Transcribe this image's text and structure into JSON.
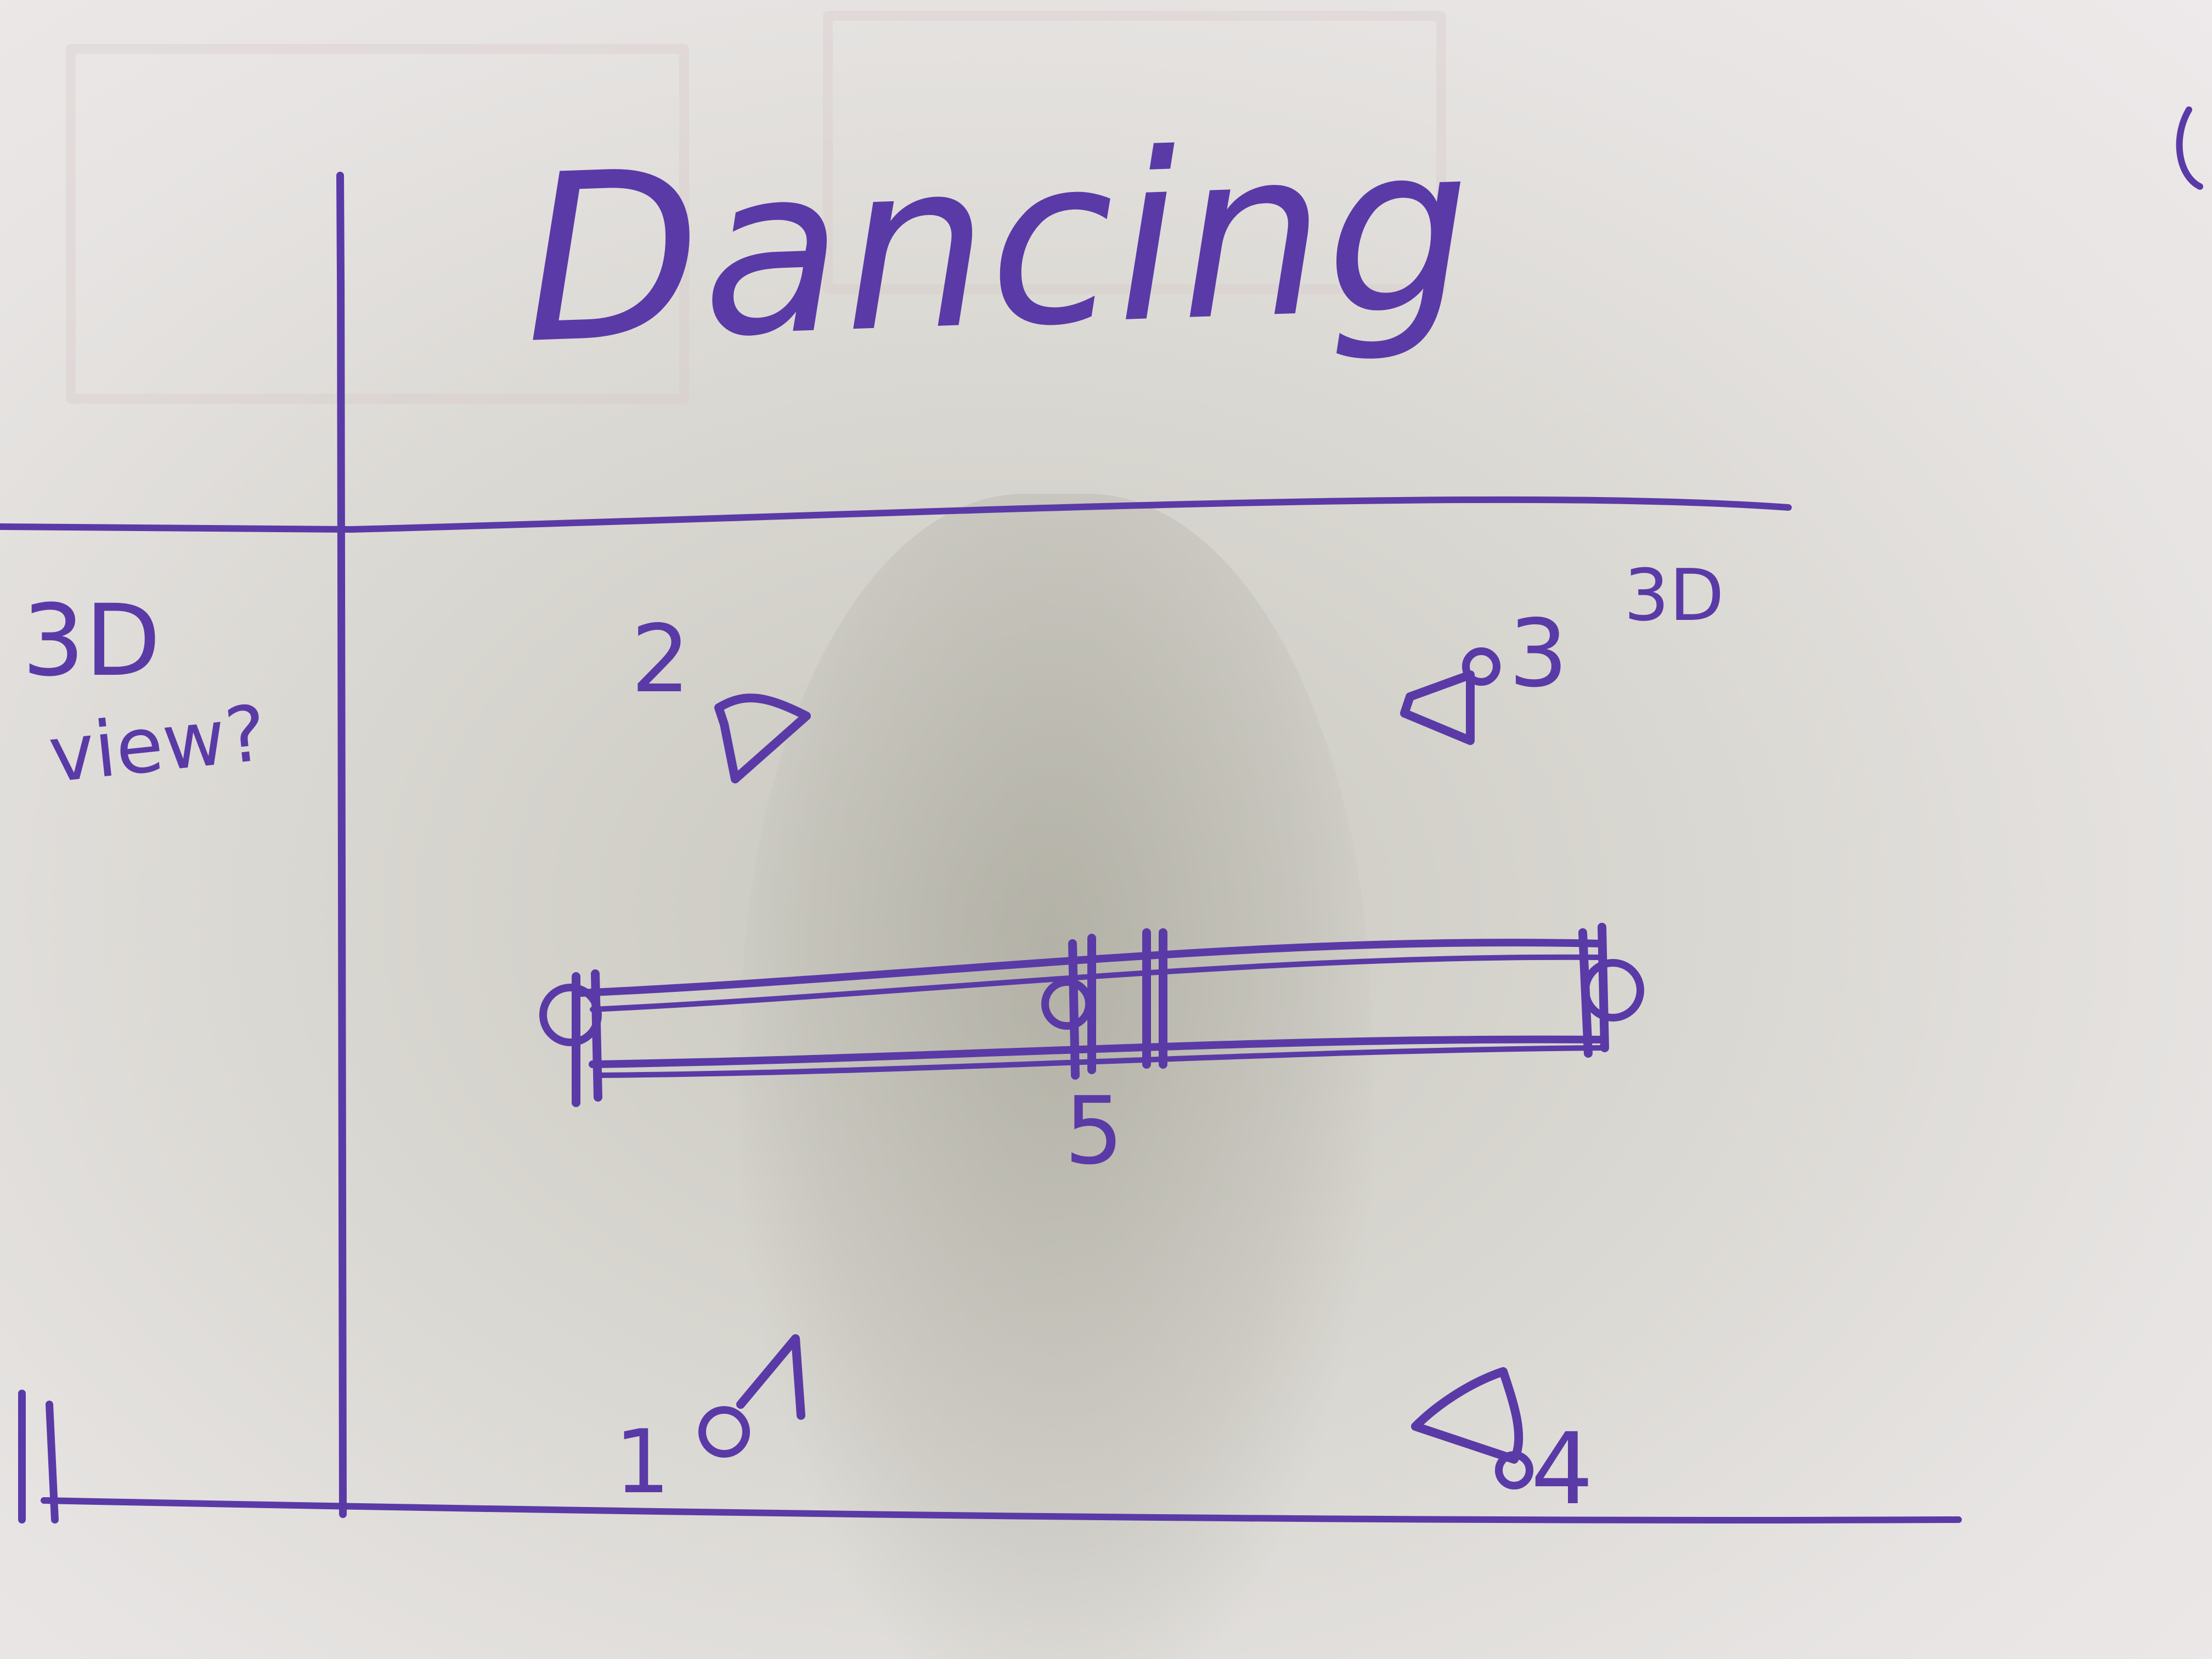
{
  "title": "Dancing",
  "left_note_line1": "3D",
  "left_note_line2": "view?",
  "labels": {
    "camera_1": "1",
    "camera_2": "2",
    "camera_3": "3",
    "camera_3_tag": "3D",
    "camera_4": "4",
    "center_mark": "5"
  },
  "ink_color": "#5a3aa6"
}
